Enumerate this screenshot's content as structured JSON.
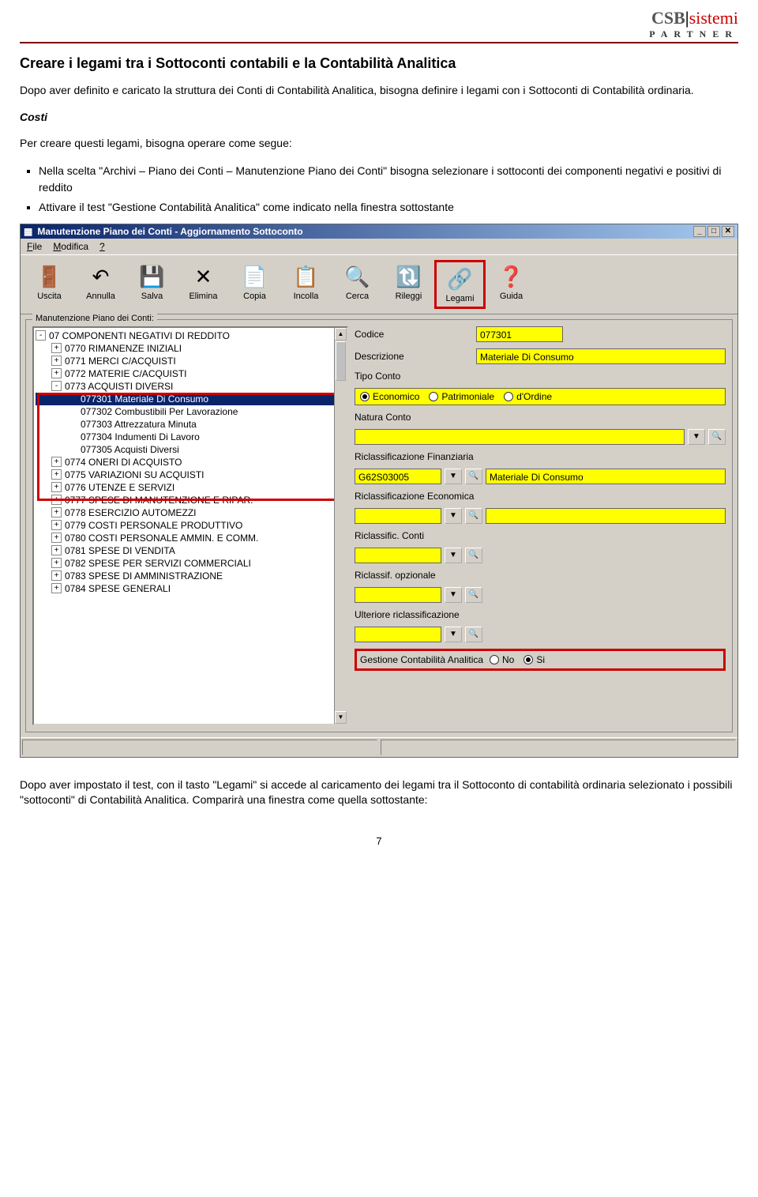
{
  "logo": {
    "csb": "CSB",
    "sistemi": "sistemi",
    "sub": "PARTNER"
  },
  "doc": {
    "title": "Creare i legami tra i Sottoconti contabili e la Contabilità Analitica",
    "intro": "Dopo aver definito e caricato la struttura dei Conti di Contabilità Analitica, bisogna definire i legami con i Sottoconti di Contabilità ordinaria.",
    "sub_head": "Costi",
    "p2": "Per creare questi legami, bisogna operare come segue:",
    "bullets": [
      "Nella scelta \"Archivi – Piano dei Conti – Manutenzione Piano dei Conti\"  bisogna selezionare i sottoconti dei componenti negativi e positivi di reddito",
      "Attivare il test \"Gestione Contabilità Analitica\" come indicato nella finestra sottostante"
    ],
    "closing": "Dopo aver impostato il test, con il tasto \"Legami\" si accede al caricamento dei legami tra il Sottoconto di contabilità ordinaria selezionato i  possibili \"sottoconti\" di Contabilità Analitica. Comparirà una finestra come quella sottostante:",
    "page_num": "7"
  },
  "window": {
    "title": "Manutenzione Piano dei Conti - Aggiornamento Sottoconto",
    "menu": [
      "File",
      "Modifica",
      "?"
    ],
    "toolbar": [
      {
        "label": "Uscita",
        "icon": "🚪",
        "hl": false
      },
      {
        "label": "Annulla",
        "icon": "↶",
        "hl": false
      },
      {
        "label": "Salva",
        "icon": "💾",
        "hl": false
      },
      {
        "label": "Elimina",
        "icon": "✕",
        "hl": false
      },
      {
        "label": "Copia",
        "icon": "📄",
        "hl": false
      },
      {
        "label": "Incolla",
        "icon": "📋",
        "hl": false
      },
      {
        "label": "Cerca",
        "icon": "🔍",
        "hl": false
      },
      {
        "label": "Rileggi",
        "icon": "🔃",
        "hl": false
      },
      {
        "label": "Legami",
        "icon": "🔗",
        "hl": true
      },
      {
        "label": "Guida",
        "icon": "❓",
        "hl": false
      }
    ],
    "group_label": "Manutenzione Piano dei Conti:",
    "tree": [
      {
        "ind": 0,
        "exp": "-",
        "text": "07 COMPONENTI NEGATIVI DI REDDITO",
        "sel": false
      },
      {
        "ind": 1,
        "exp": "+",
        "text": "0770 RIMANENZE INIZIALI",
        "sel": false
      },
      {
        "ind": 1,
        "exp": "+",
        "text": "0771 MERCI C/ACQUISTI",
        "sel": false
      },
      {
        "ind": 1,
        "exp": "+",
        "text": "0772 MATERIE C/ACQUISTI",
        "sel": false
      },
      {
        "ind": 1,
        "exp": "-",
        "text": "0773 ACQUISTI DIVERSI",
        "sel": false
      },
      {
        "ind": 2,
        "exp": "",
        "text": "077301 Materiale Di Consumo",
        "sel": true
      },
      {
        "ind": 2,
        "exp": "",
        "text": "077302 Combustibili Per Lavorazione",
        "sel": false
      },
      {
        "ind": 2,
        "exp": "",
        "text": "077303 Attrezzatura Minuta",
        "sel": false
      },
      {
        "ind": 2,
        "exp": "",
        "text": "077304 Indumenti Di Lavoro",
        "sel": false
      },
      {
        "ind": 2,
        "exp": "",
        "text": "077305 Acquisti Diversi",
        "sel": false
      },
      {
        "ind": 1,
        "exp": "+",
        "text": "0774 ONERI DI ACQUISTO",
        "sel": false
      },
      {
        "ind": 1,
        "exp": "+",
        "text": "0775 VARIAZIONI SU ACQUISTI",
        "sel": false
      },
      {
        "ind": 1,
        "exp": "+",
        "text": "0776 UTENZE E SERVIZI",
        "sel": false
      },
      {
        "ind": 1,
        "exp": "+",
        "text": "0777 SPESE DI MANUTENZIONE E RIPAR.",
        "sel": false
      },
      {
        "ind": 1,
        "exp": "+",
        "text": "0778 ESERCIZIO AUTOMEZZI",
        "sel": false
      },
      {
        "ind": 1,
        "exp": "+",
        "text": "0779 COSTI PERSONALE PRODUTTIVO",
        "sel": false
      },
      {
        "ind": 1,
        "exp": "+",
        "text": "0780 COSTI PERSONALE AMMIN. E COMM.",
        "sel": false
      },
      {
        "ind": 1,
        "exp": "+",
        "text": "0781 SPESE DI VENDITA",
        "sel": false
      },
      {
        "ind": 1,
        "exp": "+",
        "text": "0782 SPESE PER SERVIZI COMMERCIALI",
        "sel": false
      },
      {
        "ind": 1,
        "exp": "+",
        "text": "0783 SPESE DI AMMINISTRAZIONE",
        "sel": false
      },
      {
        "ind": 1,
        "exp": "+",
        "text": "0784 SPESE GENERALI",
        "sel": false
      }
    ],
    "form": {
      "codice_label": "Codice",
      "codice": "077301",
      "descrizione_label": "Descrizione",
      "descrizione": "Materiale Di Consumo",
      "tipo_label": "Tipo Conto",
      "tipo_opts": [
        {
          "text": "Economico",
          "on": true
        },
        {
          "text": "Patrimoniale",
          "on": false
        },
        {
          "text": "d'Ordine",
          "on": false
        }
      ],
      "natura_label": "Natura Conto",
      "riclass_fin_label": "Riclassificazione Finanziaria",
      "riclass_fin_code": "G62S03005",
      "riclass_fin_desc": "Materiale Di Consumo",
      "riclass_eco_label": "Riclassificazione Economica",
      "riclass_conti_label": "Riclassific. Conti",
      "riclass_opt_label": "Riclassif. opzionale",
      "ult_riclass_label": "Ulteriore riclassificazione",
      "gest_label": "Gestione Contabilità Analitica",
      "gest_opts": [
        {
          "text": "No",
          "on": false
        },
        {
          "text": "Si",
          "on": true
        }
      ]
    }
  },
  "colors": {
    "window_bg": "#d4d0c8",
    "title_start": "#0a246a",
    "title_end": "#a6caf0",
    "field_bg": "#ffff00",
    "highlight_border": "#c00000",
    "header_rule": "#800000"
  }
}
